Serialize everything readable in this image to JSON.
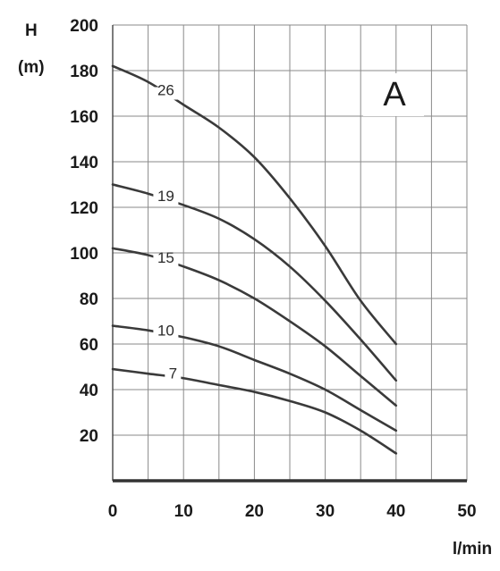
{
  "chart_data": {
    "type": "line",
    "title": "",
    "corner_label": "A",
    "ylabel_symbol": "H",
    "ylabel_unit": "(m)",
    "xlabel": "l/min",
    "xlim": [
      0,
      50
    ],
    "ylim": [
      0,
      200
    ],
    "x_ticks": [
      0,
      10,
      20,
      30,
      40,
      50
    ],
    "y_ticks": [
      20,
      40,
      60,
      80,
      100,
      120,
      140,
      160,
      180,
      200
    ],
    "grid": true,
    "series": [
      {
        "name": "26",
        "x": [
          0,
          5,
          10,
          15,
          20,
          25,
          30,
          35,
          40
        ],
        "y": [
          182,
          175,
          165,
          155,
          142,
          124,
          103,
          79,
          60
        ]
      },
      {
        "name": "19",
        "x": [
          0,
          5,
          10,
          15,
          20,
          25,
          30,
          35,
          40
        ],
        "y": [
          130,
          126,
          121,
          115,
          106,
          94,
          79,
          62,
          44
        ]
      },
      {
        "name": "15",
        "x": [
          0,
          5,
          10,
          15,
          20,
          25,
          30,
          35,
          40
        ],
        "y": [
          102,
          99,
          94,
          88,
          80,
          70,
          59,
          46,
          33
        ]
      },
      {
        "name": "10",
        "x": [
          0,
          5,
          10,
          15,
          20,
          25,
          30,
          35,
          40
        ],
        "y": [
          68,
          66,
          63,
          59,
          53,
          47,
          40,
          31,
          22
        ]
      },
      {
        "name": "7",
        "x": [
          0,
          5,
          10,
          15,
          20,
          25,
          30,
          35,
          40
        ],
        "y": [
          49,
          47,
          45,
          42,
          39,
          35,
          30,
          22,
          12
        ]
      }
    ],
    "curve_labels": [
      {
        "series": "26",
        "text": "26",
        "x": 7.5
      },
      {
        "series": "19",
        "text": "19",
        "x": 7.5
      },
      {
        "series": "15",
        "text": "15",
        "x": 7.5
      },
      {
        "series": "10",
        "text": "10",
        "x": 7.5
      },
      {
        "series": "7",
        "text": "7",
        "x": 8.5
      }
    ]
  }
}
